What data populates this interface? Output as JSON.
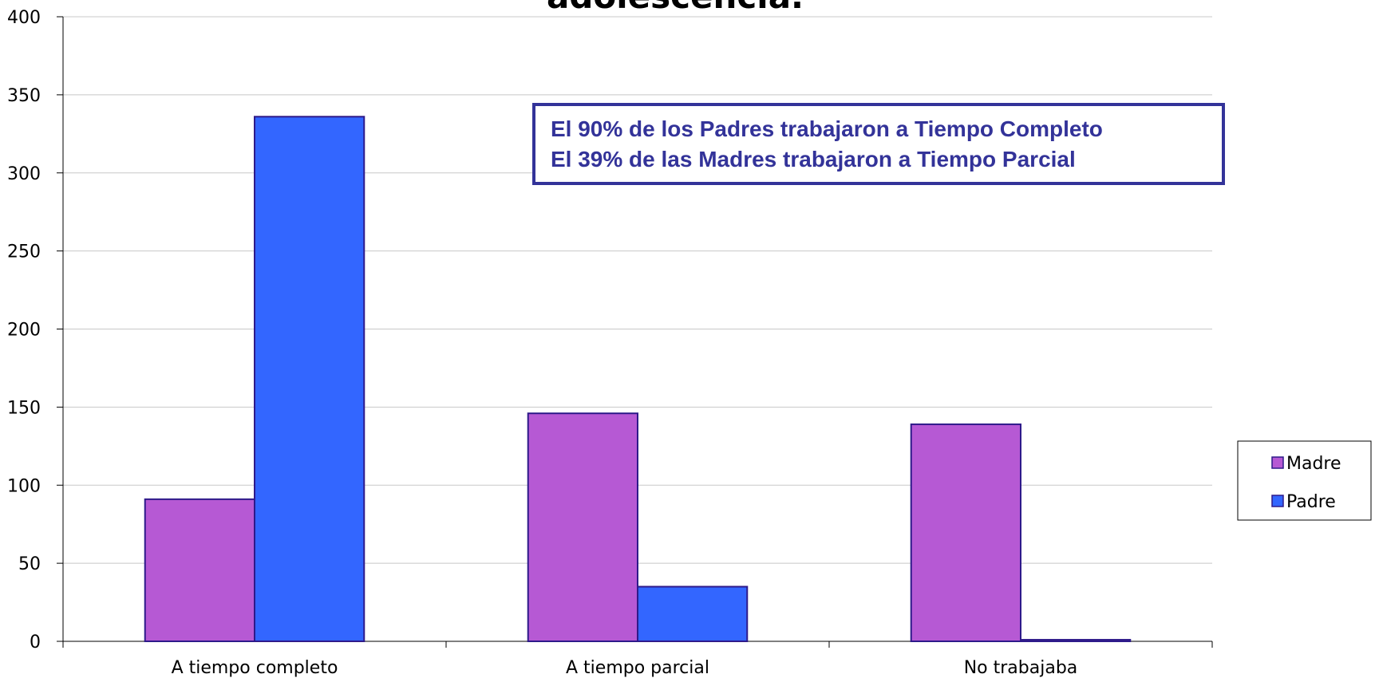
{
  "chart_data": {
    "type": "bar",
    "title": "adolescencia.",
    "categories": [
      "A tiempo completo",
      "A tiempo parcial",
      "No trabajaba"
    ],
    "series": [
      {
        "name": "Madre",
        "color": "#b659d4",
        "values": [
          91,
          146,
          139
        ]
      },
      {
        "name": "Padre",
        "color": "#3366ff",
        "values": [
          336,
          35,
          1
        ]
      }
    ],
    "ylim": [
      0,
      400
    ],
    "yticks": [
      0,
      50,
      100,
      150,
      200,
      250,
      300,
      350,
      400
    ],
    "grid": true,
    "legend": "right",
    "annotations": [
      "El 90% de los Padres trabajaron a Tiempo Completo",
      "El 39% de las Madres trabajaron a Tiempo Parcial"
    ]
  }
}
